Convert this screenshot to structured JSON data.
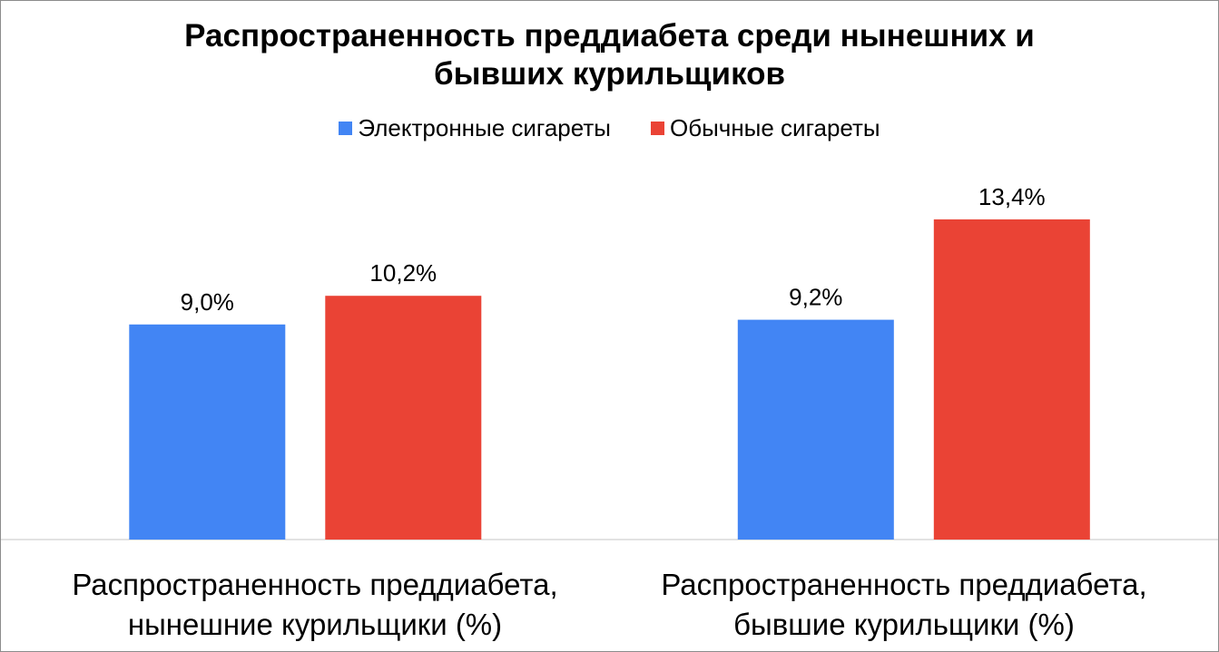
{
  "chart_data": {
    "type": "bar",
    "title": "Распространенность преддиабета среди нынешних и бывших курильщиков",
    "title_lines": [
      "Распространенность преддиабета среди нынешних и",
      "бывших курильщиков"
    ],
    "categories": [
      "Распространенность преддиабета, нынешние курильщики (%)",
      "Распространенность преддиабета, бывшие курильщики (%)"
    ],
    "category_lines": [
      [
        "Распространенность преддиабета,",
        "нынешние курильщики (%)"
      ],
      [
        "Распространенность преддиабета,",
        "бывшие курильщики (%)"
      ]
    ],
    "series": [
      {
        "name": "Электронные сигареты",
        "color": "#4285f4",
        "values": [
          9.0,
          9.2
        ],
        "labels": [
          "9,0%",
          "9,2%"
        ]
      },
      {
        "name": "Обычные сигареты",
        "color": "#ea4335",
        "values": [
          10.2,
          13.4
        ],
        "labels": [
          "10,2%",
          "13,4%"
        ]
      }
    ],
    "ylim": [
      0,
      14.8
    ],
    "grid": false,
    "legend_position": "top-center",
    "axis_line_color": "#d9d9d9"
  }
}
